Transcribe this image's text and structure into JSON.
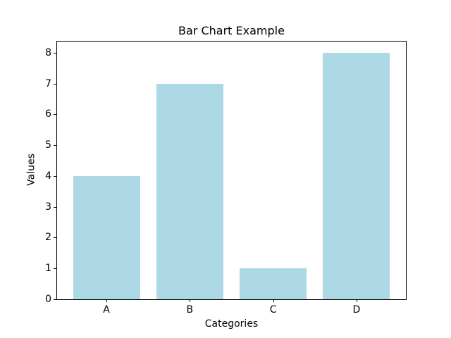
{
  "chart_data": {
    "type": "bar",
    "title": "Bar Chart Example",
    "xlabel": "Categories",
    "ylabel": "Values",
    "categories": [
      "A",
      "B",
      "C",
      "D"
    ],
    "values": [
      4,
      7,
      1,
      8
    ],
    "yticks": [
      0,
      1,
      2,
      3,
      4,
      5,
      6,
      7,
      8
    ],
    "ylim": [
      0,
      8.36
    ],
    "bar_color": "#ADD8E6",
    "spine_color": "#000000",
    "background_color": "#ffffff",
    "grid": false,
    "legend": null
  }
}
